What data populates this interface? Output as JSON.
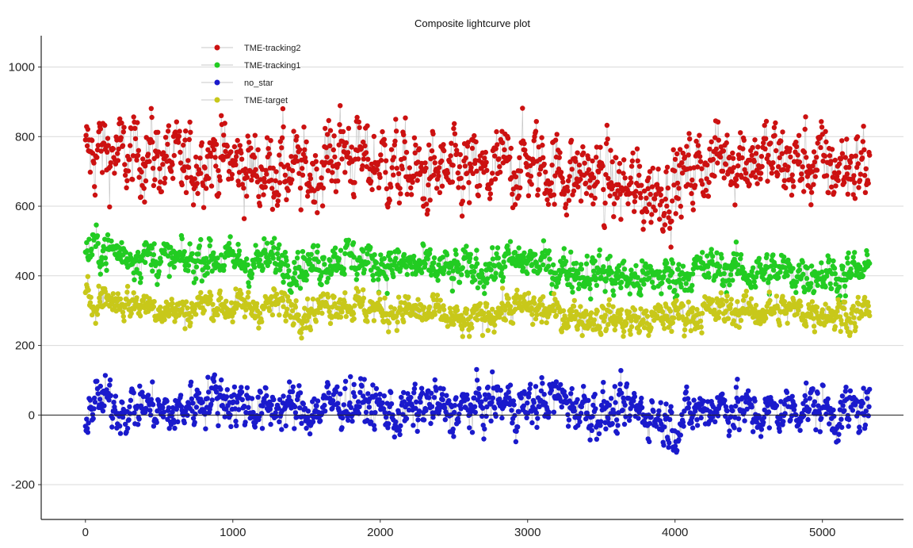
{
  "chart_data": {
    "type": "scatter",
    "title": "Composite lightcurve plot",
    "xlabel": "",
    "ylabel": "",
    "xlim": [
      -300,
      5550
    ],
    "ylim": [
      -300,
      1090
    ],
    "x_ticks": [
      0,
      1000,
      2000,
      3000,
      4000,
      5000
    ],
    "x_tick_labels": [
      "0",
      "1000",
      "2000",
      "3000",
      "4000",
      "5000"
    ],
    "y_ticks": [
      -200,
      0,
      200,
      400,
      600,
      800,
      1000
    ],
    "y_tick_labels": [
      "-200",
      "0",
      "200",
      "400",
      "600",
      "800",
      "1000"
    ],
    "grid": "horizontal",
    "zero_line": true,
    "legend_position": "top-left",
    "connecting_line_color": "#c8c8c8",
    "x_range": [
      0,
      5320
    ],
    "series": [
      {
        "name": "TME-tracking2",
        "color": "#cc1111",
        "x": [
          0,
          100,
          200,
          300,
          400,
          500,
          600,
          700,
          800,
          900,
          1000,
          1100,
          1200,
          1300,
          1400,
          1500,
          1600,
          1700,
          1800,
          1900,
          2000,
          2100,
          2200,
          2300,
          2400,
          2500,
          2600,
          2700,
          2800,
          2900,
          3000,
          3100,
          3200,
          3300,
          3400,
          3500,
          3600,
          3700,
          3800,
          3900,
          4000,
          4100,
          4200,
          4300,
          4400,
          4500,
          4600,
          4700,
          4800,
          4900,
          5000,
          5100,
          5200,
          5300
        ],
        "y": [
          740,
          760,
          750,
          730,
          760,
          740,
          720,
          700,
          760,
          740,
          720,
          710,
          700,
          720,
          700,
          690,
          710,
          760,
          760,
          720,
          730,
          710,
          700,
          680,
          690,
          680,
          690,
          680,
          700,
          720,
          730,
          720,
          700,
          690,
          690,
          680,
          660,
          640,
          640,
          650,
          660,
          700,
          720,
          740,
          750,
          740,
          740,
          730,
          720,
          720,
          720,
          710,
          720,
          720
        ],
        "spread": 110
      },
      {
        "name": "TME-tracking1",
        "color": "#22cc22",
        "x": [
          0,
          100,
          200,
          300,
          400,
          500,
          600,
          700,
          800,
          900,
          1000,
          1100,
          1200,
          1300,
          1400,
          1500,
          1600,
          1700,
          1800,
          1900,
          2000,
          2100,
          2200,
          2300,
          2400,
          2500,
          2600,
          2700,
          2800,
          2900,
          3000,
          3100,
          3200,
          3300,
          3400,
          3500,
          3600,
          3700,
          3800,
          3900,
          4000,
          4100,
          4200,
          4300,
          4400,
          4500,
          4600,
          4700,
          4800,
          4900,
          5000,
          5100,
          5200,
          5300
        ],
        "y": [
          470,
          480,
          470,
          460,
          460,
          450,
          440,
          440,
          460,
          450,
          440,
          440,
          440,
          450,
          440,
          430,
          440,
          460,
          450,
          440,
          440,
          430,
          430,
          420,
          420,
          410,
          420,
          420,
          430,
          440,
          440,
          430,
          420,
          420,
          410,
          410,
          400,
          390,
          390,
          400,
          400,
          410,
          420,
          420,
          420,
          410,
          410,
          410,
          410,
          410,
          410,
          400,
          410,
          410
        ],
        "spread": 55
      },
      {
        "name": "no_star",
        "color": "#1a1acc",
        "x": [
          0,
          100,
          200,
          300,
          400,
          500,
          600,
          700,
          800,
          900,
          1000,
          1100,
          1200,
          1300,
          1400,
          1500,
          1600,
          1700,
          1800,
          1900,
          2000,
          2100,
          2200,
          2300,
          2400,
          2500,
          2600,
          2700,
          2800,
          2900,
          3000,
          3100,
          3200,
          3300,
          3400,
          3500,
          3600,
          3700,
          3800,
          3900,
          4000,
          4100,
          4200,
          4300,
          4400,
          4500,
          4600,
          4700,
          4800,
          4900,
          5000,
          5100,
          5200,
          5300
        ],
        "y": [
          20,
          40,
          30,
          20,
          30,
          10,
          0,
          30,
          50,
          60,
          40,
          30,
          10,
          30,
          20,
          10,
          20,
          40,
          40,
          30,
          20,
          0,
          10,
          30,
          20,
          10,
          20,
          30,
          40,
          30,
          20,
          40,
          50,
          30,
          20,
          10,
          0,
          20,
          10,
          -10,
          -30,
          0,
          20,
          30,
          20,
          10,
          0,
          10,
          20,
          30,
          20,
          0,
          10,
          20
        ],
        "spread": 65
      },
      {
        "name": "TME-target",
        "color": "#c8c81a",
        "x": [
          0,
          100,
          200,
          300,
          400,
          500,
          600,
          700,
          800,
          900,
          1000,
          1100,
          1200,
          1300,
          1400,
          1500,
          1600,
          1700,
          1800,
          1900,
          2000,
          2100,
          2200,
          2300,
          2400,
          2500,
          2600,
          2700,
          2800,
          2900,
          3000,
          3100,
          3200,
          3300,
          3400,
          3500,
          3600,
          3700,
          3800,
          3900,
          4000,
          4100,
          4200,
          4300,
          4400,
          4500,
          4600,
          4700,
          4800,
          4900,
          5000,
          5100,
          5200,
          5300
        ],
        "y": [
          330,
          340,
          330,
          320,
          320,
          310,
          300,
          300,
          320,
          320,
          310,
          310,
          310,
          320,
          310,
          300,
          310,
          330,
          320,
          310,
          300,
          300,
          300,
          290,
          290,
          270,
          260,
          290,
          300,
          310,
          310,
          300,
          290,
          290,
          280,
          280,
          280,
          270,
          270,
          280,
          290,
          290,
          300,
          300,
          300,
          300,
          300,
          300,
          300,
          300,
          300,
          290,
          290,
          300
        ],
        "spread": 45
      }
    ]
  }
}
